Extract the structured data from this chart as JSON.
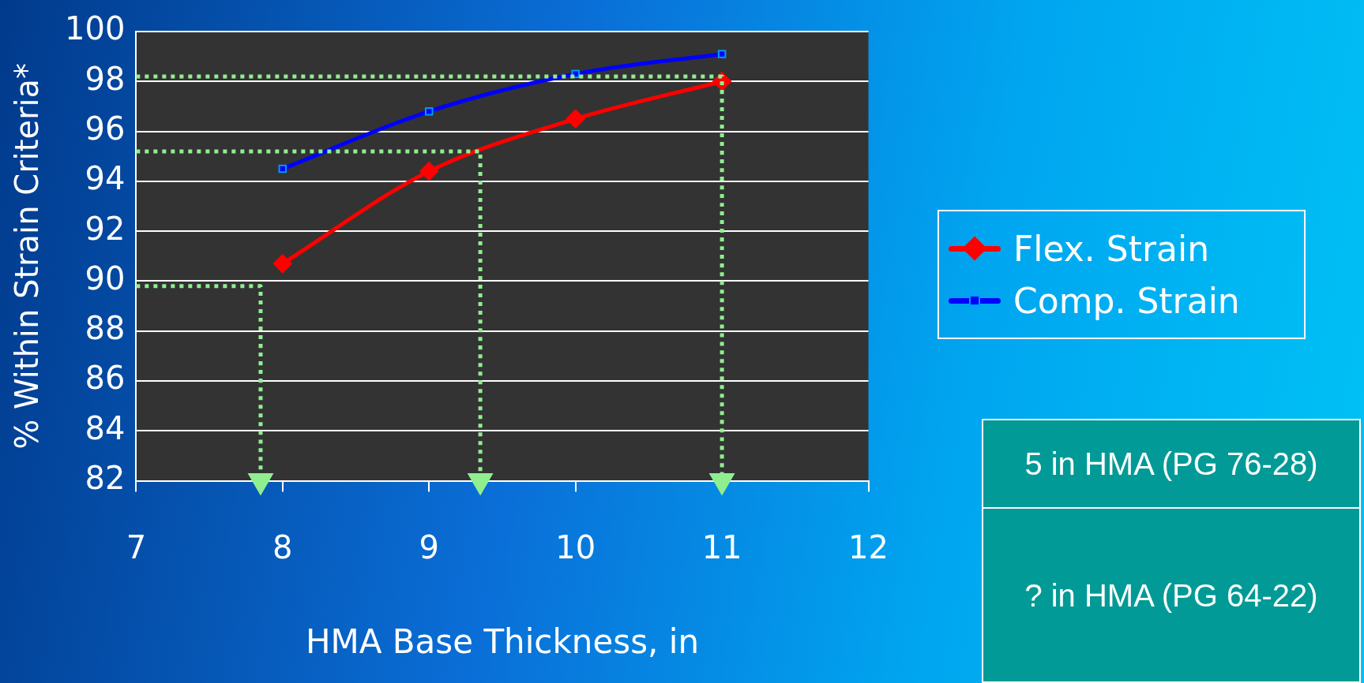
{
  "chart_data": {
    "type": "line",
    "xlabel": "HMA Base Thickness, in",
    "ylabel": "% Within Strain Criteria*",
    "xlim": [
      7,
      12
    ],
    "xticks": [
      7,
      8,
      9,
      10,
      11,
      12
    ],
    "ylim": [
      82,
      100
    ],
    "yticks": [
      82,
      84,
      86,
      88,
      90,
      92,
      94,
      96,
      98,
      100
    ],
    "grid": "y",
    "legend": "right",
    "series": [
      {
        "name": "Flex. Strain",
        "color": "#ff0000",
        "marker": "diamond",
        "x": [
          8,
          9,
          10,
          11
        ],
        "values": [
          90.7,
          94.4,
          96.5,
          98.0
        ]
      },
      {
        "name": "Comp. Strain",
        "color": "#0000ff",
        "marker": "square",
        "x": [
          8,
          9,
          10,
          11
        ],
        "values": [
          94.5,
          96.8,
          98.3,
          99.1
        ]
      },
      {
        "color": "#90ee90",
        "line_style": "dotted",
        "marker": "none",
        "x": [
          7,
          11,
          11
        ],
        "values": [
          98.2,
          98.2,
          82
        ]
      },
      {
        "color": "#90ee90",
        "line_style": "dotted",
        "marker": "none",
        "x": [
          7,
          9.35,
          9.35
        ],
        "values": [
          95.2,
          95.2,
          82
        ]
      },
      {
        "color": "#90ee90",
        "line_style": "dotted",
        "marker": "none",
        "x": [
          7,
          7.85,
          7.85
        ],
        "values": [
          89.8,
          89.8,
          82
        ]
      }
    ],
    "annotations": [
      "5 in HMA (PG 76-28)",
      "? in HMA (PG 64-22)"
    ]
  }
}
